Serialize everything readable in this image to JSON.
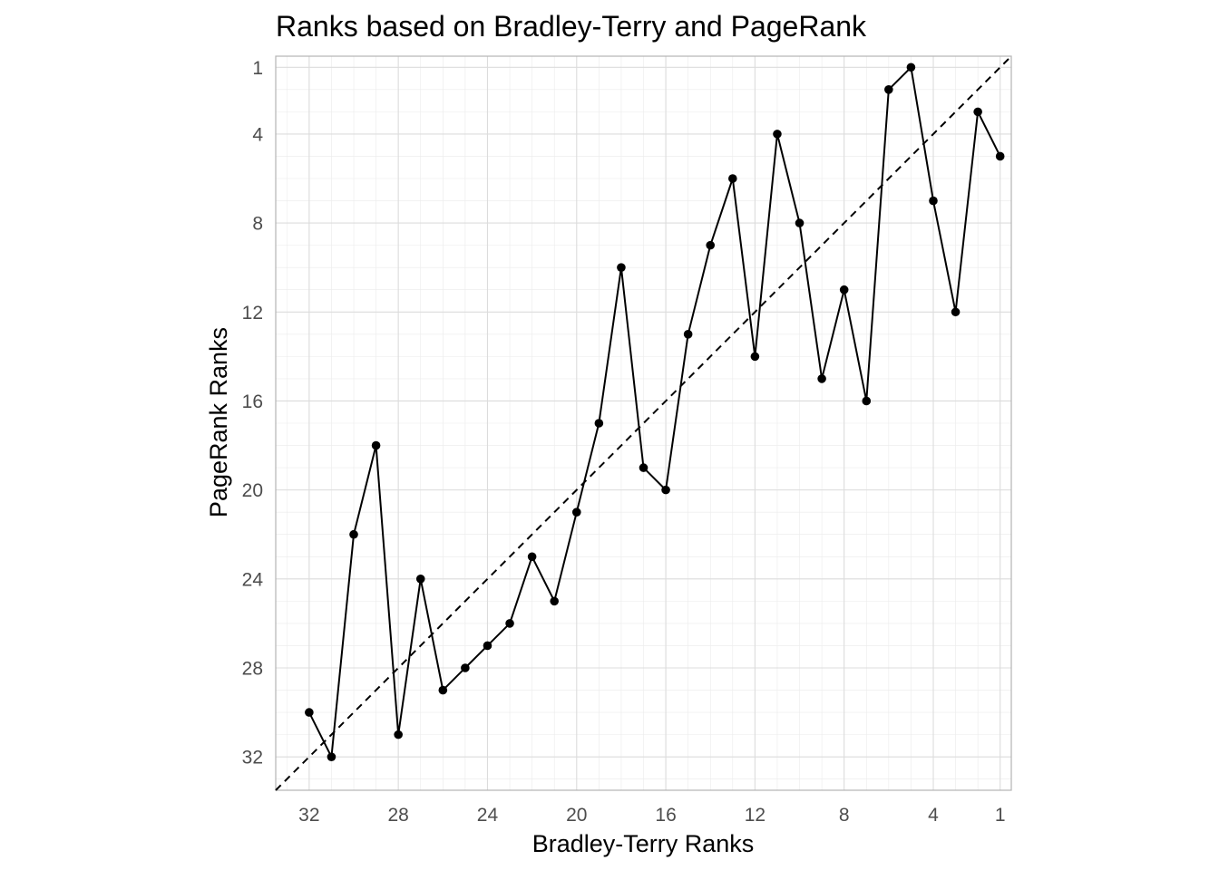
{
  "chart_data": {
    "type": "line",
    "title": "Ranks based on Bradley-Terry and PageRank",
    "xlabel": "Bradley-Terry Ranks",
    "ylabel": "PageRank Ranks",
    "x_reversed": true,
    "y_reversed": true,
    "xlim": [
      33.5,
      0.5
    ],
    "ylim": [
      0.5,
      33.5
    ],
    "x_ticks": [
      32,
      28,
      24,
      20,
      16,
      12,
      8,
      4,
      1
    ],
    "y_ticks": [
      1,
      4,
      8,
      12,
      16,
      20,
      24,
      28,
      32
    ],
    "grid": true,
    "reference_line": {
      "style": "dashed",
      "slope": 1,
      "intercept": 0
    },
    "series": [
      {
        "x": [
          32,
          31,
          30,
          29,
          28,
          27,
          26,
          25,
          24,
          23,
          22,
          21,
          20,
          19,
          18,
          17,
          16,
          15,
          14,
          13,
          12,
          11,
          10,
          9,
          8,
          7,
          6,
          5,
          4,
          3,
          2,
          1
        ],
        "y": [
          30,
          32,
          22,
          18,
          31,
          24,
          29,
          28,
          27,
          26,
          23,
          25,
          21,
          17,
          10,
          19,
          20,
          13,
          9,
          6,
          14,
          4,
          8,
          15,
          11,
          16,
          2,
          1,
          7,
          12,
          3,
          5
        ]
      }
    ]
  }
}
